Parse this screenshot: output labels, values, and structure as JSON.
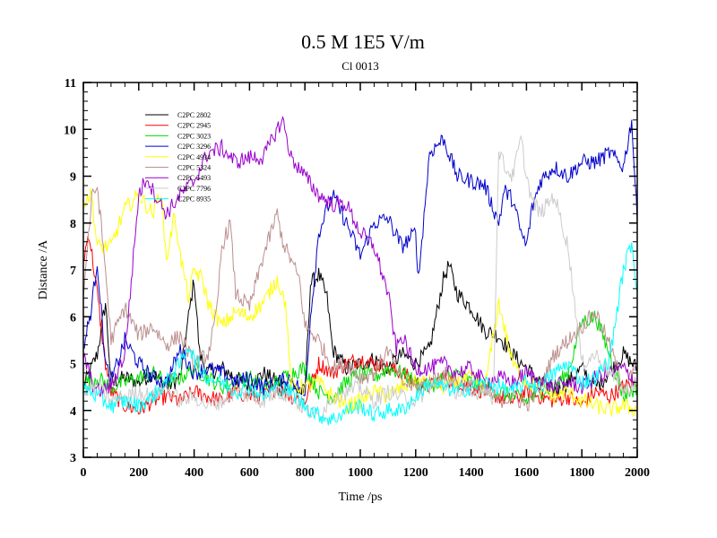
{
  "chart_data": {
    "type": "line",
    "title": "0.5 M 1E5 V/m",
    "subtitle": "Cl 0013",
    "xlabel": "Time /ps",
    "ylabel": "Distance /A",
    "xlim": [
      0,
      2000
    ],
    "ylim": [
      3,
      11
    ],
    "x_ticks": [
      0,
      200,
      400,
      600,
      800,
      1000,
      1200,
      1400,
      1600,
      1800,
      2000
    ],
    "y_ticks": [
      3,
      4,
      5,
      6,
      7,
      8,
      9,
      10,
      11
    ],
    "grid": false,
    "legend_position": "top-left",
    "series": [
      {
        "name": "C2PC 2802",
        "color": "#000000",
        "x": [
          0,
          50,
          80,
          100,
          150,
          200,
          250,
          300,
          350,
          380,
          400,
          420,
          450,
          500,
          550,
          600,
          650,
          700,
          750,
          780,
          800,
          820,
          850,
          880,
          900,
          950,
          1000,
          1050,
          1100,
          1150,
          1200,
          1250,
          1300,
          1320,
          1350,
          1400,
          1450,
          1500,
          1550,
          1600,
          1650,
          1700,
          1750,
          1800,
          1850,
          1900,
          1950,
          2000
        ],
        "values": [
          4.5,
          5.2,
          6.3,
          4.6,
          4.7,
          4.6,
          4.8,
          4.5,
          4.7,
          6.0,
          6.8,
          5.2,
          4.8,
          4.9,
          4.7,
          4.5,
          4.8,
          4.6,
          4.5,
          4.4,
          4.4,
          6.7,
          6.9,
          6.4,
          5.3,
          4.9,
          5.0,
          5.1,
          4.9,
          5.2,
          5.0,
          5.3,
          6.8,
          7.1,
          6.5,
          6.2,
          5.7,
          5.6,
          5.2,
          4.9,
          4.6,
          4.4,
          4.6,
          4.9,
          4.5,
          4.8,
          5.2,
          4.9
        ]
      },
      {
        "name": "C2PC 2945",
        "color": "#ff0000",
        "x": [
          0,
          20,
          50,
          80,
          100,
          150,
          200,
          250,
          300,
          350,
          400,
          450,
          500,
          550,
          600,
          650,
          700,
          750,
          800,
          850,
          900,
          950,
          1000,
          1050,
          1100,
          1150,
          1200,
          1250,
          1300,
          1350,
          1400,
          1450,
          1500,
          1550,
          1600,
          1650,
          1700,
          1750,
          1800,
          1850,
          1900,
          1950,
          2000
        ],
        "values": [
          7.2,
          7.8,
          6.5,
          5.0,
          4.4,
          4.1,
          4.0,
          4.2,
          4.3,
          4.2,
          4.4,
          4.3,
          4.2,
          4.4,
          4.3,
          4.3,
          4.5,
          4.3,
          4.2,
          5.0,
          4.8,
          5.0,
          5.1,
          5.0,
          4.9,
          4.8,
          4.6,
          4.5,
          4.7,
          4.6,
          4.5,
          4.4,
          4.3,
          4.2,
          4.4,
          4.3,
          4.2,
          4.3,
          4.1,
          4.4,
          4.3,
          4.5,
          4.6
        ]
      },
      {
        "name": "C2PC 3023",
        "color": "#00dd00",
        "x": [
          0,
          50,
          100,
          150,
          200,
          250,
          300,
          350,
          400,
          450,
          500,
          550,
          600,
          650,
          700,
          750,
          800,
          850,
          900,
          950,
          1000,
          1050,
          1100,
          1150,
          1200,
          1250,
          1300,
          1350,
          1400,
          1450,
          1500,
          1550,
          1600,
          1650,
          1700,
          1750,
          1800,
          1850,
          1900,
          1950,
          2000
        ],
        "values": [
          4.6,
          4.7,
          4.5,
          4.6,
          4.7,
          4.8,
          4.6,
          4.7,
          4.9,
          4.7,
          4.5,
          4.6,
          4.7,
          4.5,
          4.6,
          4.8,
          4.9,
          4.4,
          4.3,
          4.6,
          4.8,
          4.7,
          4.9,
          4.8,
          4.6,
          4.5,
          4.7,
          4.8,
          4.6,
          4.5,
          4.4,
          4.3,
          4.2,
          4.4,
          4.5,
          4.8,
          5.9,
          6.0,
          5.2,
          4.3,
          4.5
        ]
      },
      {
        "name": "C2PC 3296",
        "color": "#0000cc",
        "x": [
          0,
          30,
          50,
          80,
          100,
          150,
          200,
          250,
          300,
          350,
          400,
          450,
          500,
          550,
          600,
          650,
          700,
          750,
          800,
          820,
          850,
          880,
          900,
          950,
          1000,
          1050,
          1100,
          1150,
          1200,
          1210,
          1250,
          1300,
          1350,
          1400,
          1450,
          1500,
          1520,
          1550,
          1580,
          1600,
          1620,
          1650,
          1700,
          1750,
          1800,
          1850,
          1900,
          1950,
          1980,
          2000
        ],
        "values": [
          5.3,
          6.2,
          7.2,
          5.0,
          4.6,
          5.5,
          5.0,
          4.7,
          4.6,
          5.3,
          4.8,
          4.9,
          4.8,
          4.6,
          4.7,
          4.5,
          4.6,
          4.7,
          4.3,
          6.0,
          7.8,
          8.3,
          8.6,
          8.0,
          7.3,
          8.0,
          8.1,
          7.5,
          7.8,
          6.8,
          9.5,
          9.8,
          9.0,
          8.9,
          8.8,
          8.0,
          8.7,
          8.5,
          7.8,
          7.5,
          8.3,
          8.9,
          9.2,
          9.0,
          9.3,
          9.3,
          9.5,
          9.2,
          10.2,
          8.0
        ]
      },
      {
        "name": "C2PC 4934",
        "color": "#ffff00",
        "x": [
          0,
          30,
          50,
          100,
          150,
          200,
          250,
          280,
          300,
          330,
          350,
          380,
          400,
          430,
          450,
          500,
          550,
          600,
          650,
          700,
          730,
          750,
          800,
          850,
          900,
          950,
          1000,
          1050,
          1100,
          1150,
          1200,
          1250,
          1300,
          1350,
          1400,
          1450,
          1500,
          1550,
          1600,
          1650,
          1700,
          1750,
          1800,
          1850,
          1900,
          1950,
          2000
        ],
        "values": [
          8.5,
          8.6,
          7.5,
          7.5,
          8.3,
          8.6,
          8.2,
          8.7,
          7.2,
          8.2,
          7.3,
          6.4,
          7.0,
          6.8,
          6.3,
          5.8,
          6.1,
          6.0,
          6.3,
          6.8,
          6.3,
          4.5,
          4.5,
          4.6,
          4.3,
          4.1,
          4.2,
          4.4,
          4.3,
          4.5,
          4.6,
          4.6,
          4.5,
          4.6,
          4.7,
          4.5,
          6.3,
          5.0,
          4.6,
          4.5,
          4.3,
          4.4,
          4.2,
          4.1,
          4.0,
          4.1,
          4.0
        ]
      },
      {
        "name": "C2PC 5324",
        "color": "#bc8f8f",
        "x": [
          0,
          30,
          50,
          80,
          100,
          150,
          200,
          250,
          300,
          350,
          400,
          450,
          480,
          500,
          530,
          550,
          600,
          650,
          700,
          720,
          750,
          780,
          800,
          850,
          900,
          950,
          1000,
          1050,
          1100,
          1150,
          1200,
          1250,
          1300,
          1350,
          1400,
          1450,
          1500,
          1550,
          1600,
          1650,
          1700,
          1750,
          1800,
          1850,
          1900,
          1950,
          2000
        ],
        "values": [
          6.5,
          8.5,
          8.8,
          7.0,
          5.5,
          6.2,
          5.6,
          5.8,
          5.4,
          5.6,
          5.0,
          5.2,
          6.0,
          7.5,
          8.0,
          6.5,
          6.2,
          7.3,
          8.2,
          7.6,
          7.2,
          6.8,
          5.8,
          5.5,
          4.9,
          5.0,
          4.7,
          4.8,
          5.3,
          4.6,
          4.5,
          4.6,
          4.8,
          4.6,
          4.5,
          4.4,
          4.2,
          4.3,
          4.1,
          4.5,
          5.2,
          5.5,
          5.8,
          6.1,
          5.4,
          4.5,
          4.9
        ]
      },
      {
        "name": "C2PC 5493",
        "color": "#9900cc",
        "x": [
          0,
          30,
          50,
          100,
          150,
          200,
          230,
          250,
          300,
          350,
          400,
          450,
          500,
          550,
          600,
          650,
          700,
          720,
          750,
          800,
          850,
          900,
          950,
          1000,
          1050,
          1100,
          1130,
          1150,
          1200,
          1250,
          1300,
          1350,
          1400,
          1450,
          1500,
          1550,
          1600,
          1650,
          1700,
          1750,
          1800,
          1850,
          1900,
          1950,
          2000
        ],
        "values": [
          5.2,
          4.6,
          4.4,
          4.5,
          5.2,
          8.6,
          9.0,
          8.7,
          8.2,
          8.6,
          8.9,
          9.5,
          9.6,
          9.3,
          9.4,
          9.4,
          10.0,
          10.2,
          9.4,
          9.0,
          8.6,
          8.4,
          8.4,
          7.8,
          7.5,
          6.5,
          5.3,
          5.6,
          4.9,
          4.9,
          5.0,
          4.8,
          4.9,
          4.6,
          4.7,
          4.6,
          4.8,
          4.6,
          4.5,
          4.6,
          4.5,
          4.7,
          4.8,
          4.9,
          4.6
        ]
      },
      {
        "name": "C2PC 7796",
        "color": "#cccccc",
        "x": [
          0,
          50,
          100,
          150,
          200,
          250,
          300,
          350,
          400,
          450,
          500,
          550,
          600,
          650,
          700,
          750,
          800,
          850,
          900,
          950,
          1000,
          1050,
          1100,
          1150,
          1200,
          1250,
          1300,
          1350,
          1400,
          1450,
          1480,
          1500,
          1520,
          1550,
          1580,
          1600,
          1620,
          1650,
          1700,
          1750,
          1800,
          1850,
          1900,
          1950,
          2000
        ],
        "values": [
          4.4,
          4.5,
          4.2,
          4.3,
          4.4,
          4.3,
          4.5,
          4.2,
          4.3,
          4.1,
          4.2,
          4.4,
          4.3,
          4.2,
          4.4,
          4.3,
          4.0,
          3.9,
          4.3,
          4.4,
          4.5,
          4.2,
          4.4,
          4.3,
          4.2,
          4.5,
          4.6,
          4.4,
          4.3,
          4.5,
          4.2,
          9.6,
          9.2,
          9.0,
          9.8,
          9.0,
          8.5,
          8.2,
          8.6,
          7.5,
          5.0,
          5.2,
          4.8,
          4.4,
          4.6
        ]
      },
      {
        "name": "C2PC 8935",
        "color": "#00ffff",
        "x": [
          0,
          50,
          100,
          150,
          200,
          250,
          300,
          350,
          380,
          400,
          450,
          500,
          550,
          600,
          650,
          700,
          750,
          800,
          850,
          900,
          950,
          1000,
          1050,
          1100,
          1150,
          1200,
          1250,
          1300,
          1350,
          1400,
          1450,
          1500,
          1550,
          1600,
          1650,
          1700,
          1750,
          1800,
          1850,
          1900,
          1950,
          1980,
          2000
        ],
        "values": [
          4.5,
          4.3,
          4.1,
          4.2,
          4.1,
          4.3,
          4.6,
          5.0,
          5.4,
          5.1,
          4.7,
          4.6,
          4.4,
          4.5,
          4.3,
          4.5,
          4.4,
          4.1,
          3.9,
          3.8,
          4.0,
          4.1,
          3.9,
          4.0,
          4.0,
          4.3,
          4.6,
          4.5,
          4.4,
          4.5,
          4.6,
          4.5,
          4.4,
          4.6,
          4.5,
          4.8,
          5.0,
          4.6,
          4.7,
          5.1,
          7.0,
          7.6,
          6.5
        ]
      }
    ]
  }
}
